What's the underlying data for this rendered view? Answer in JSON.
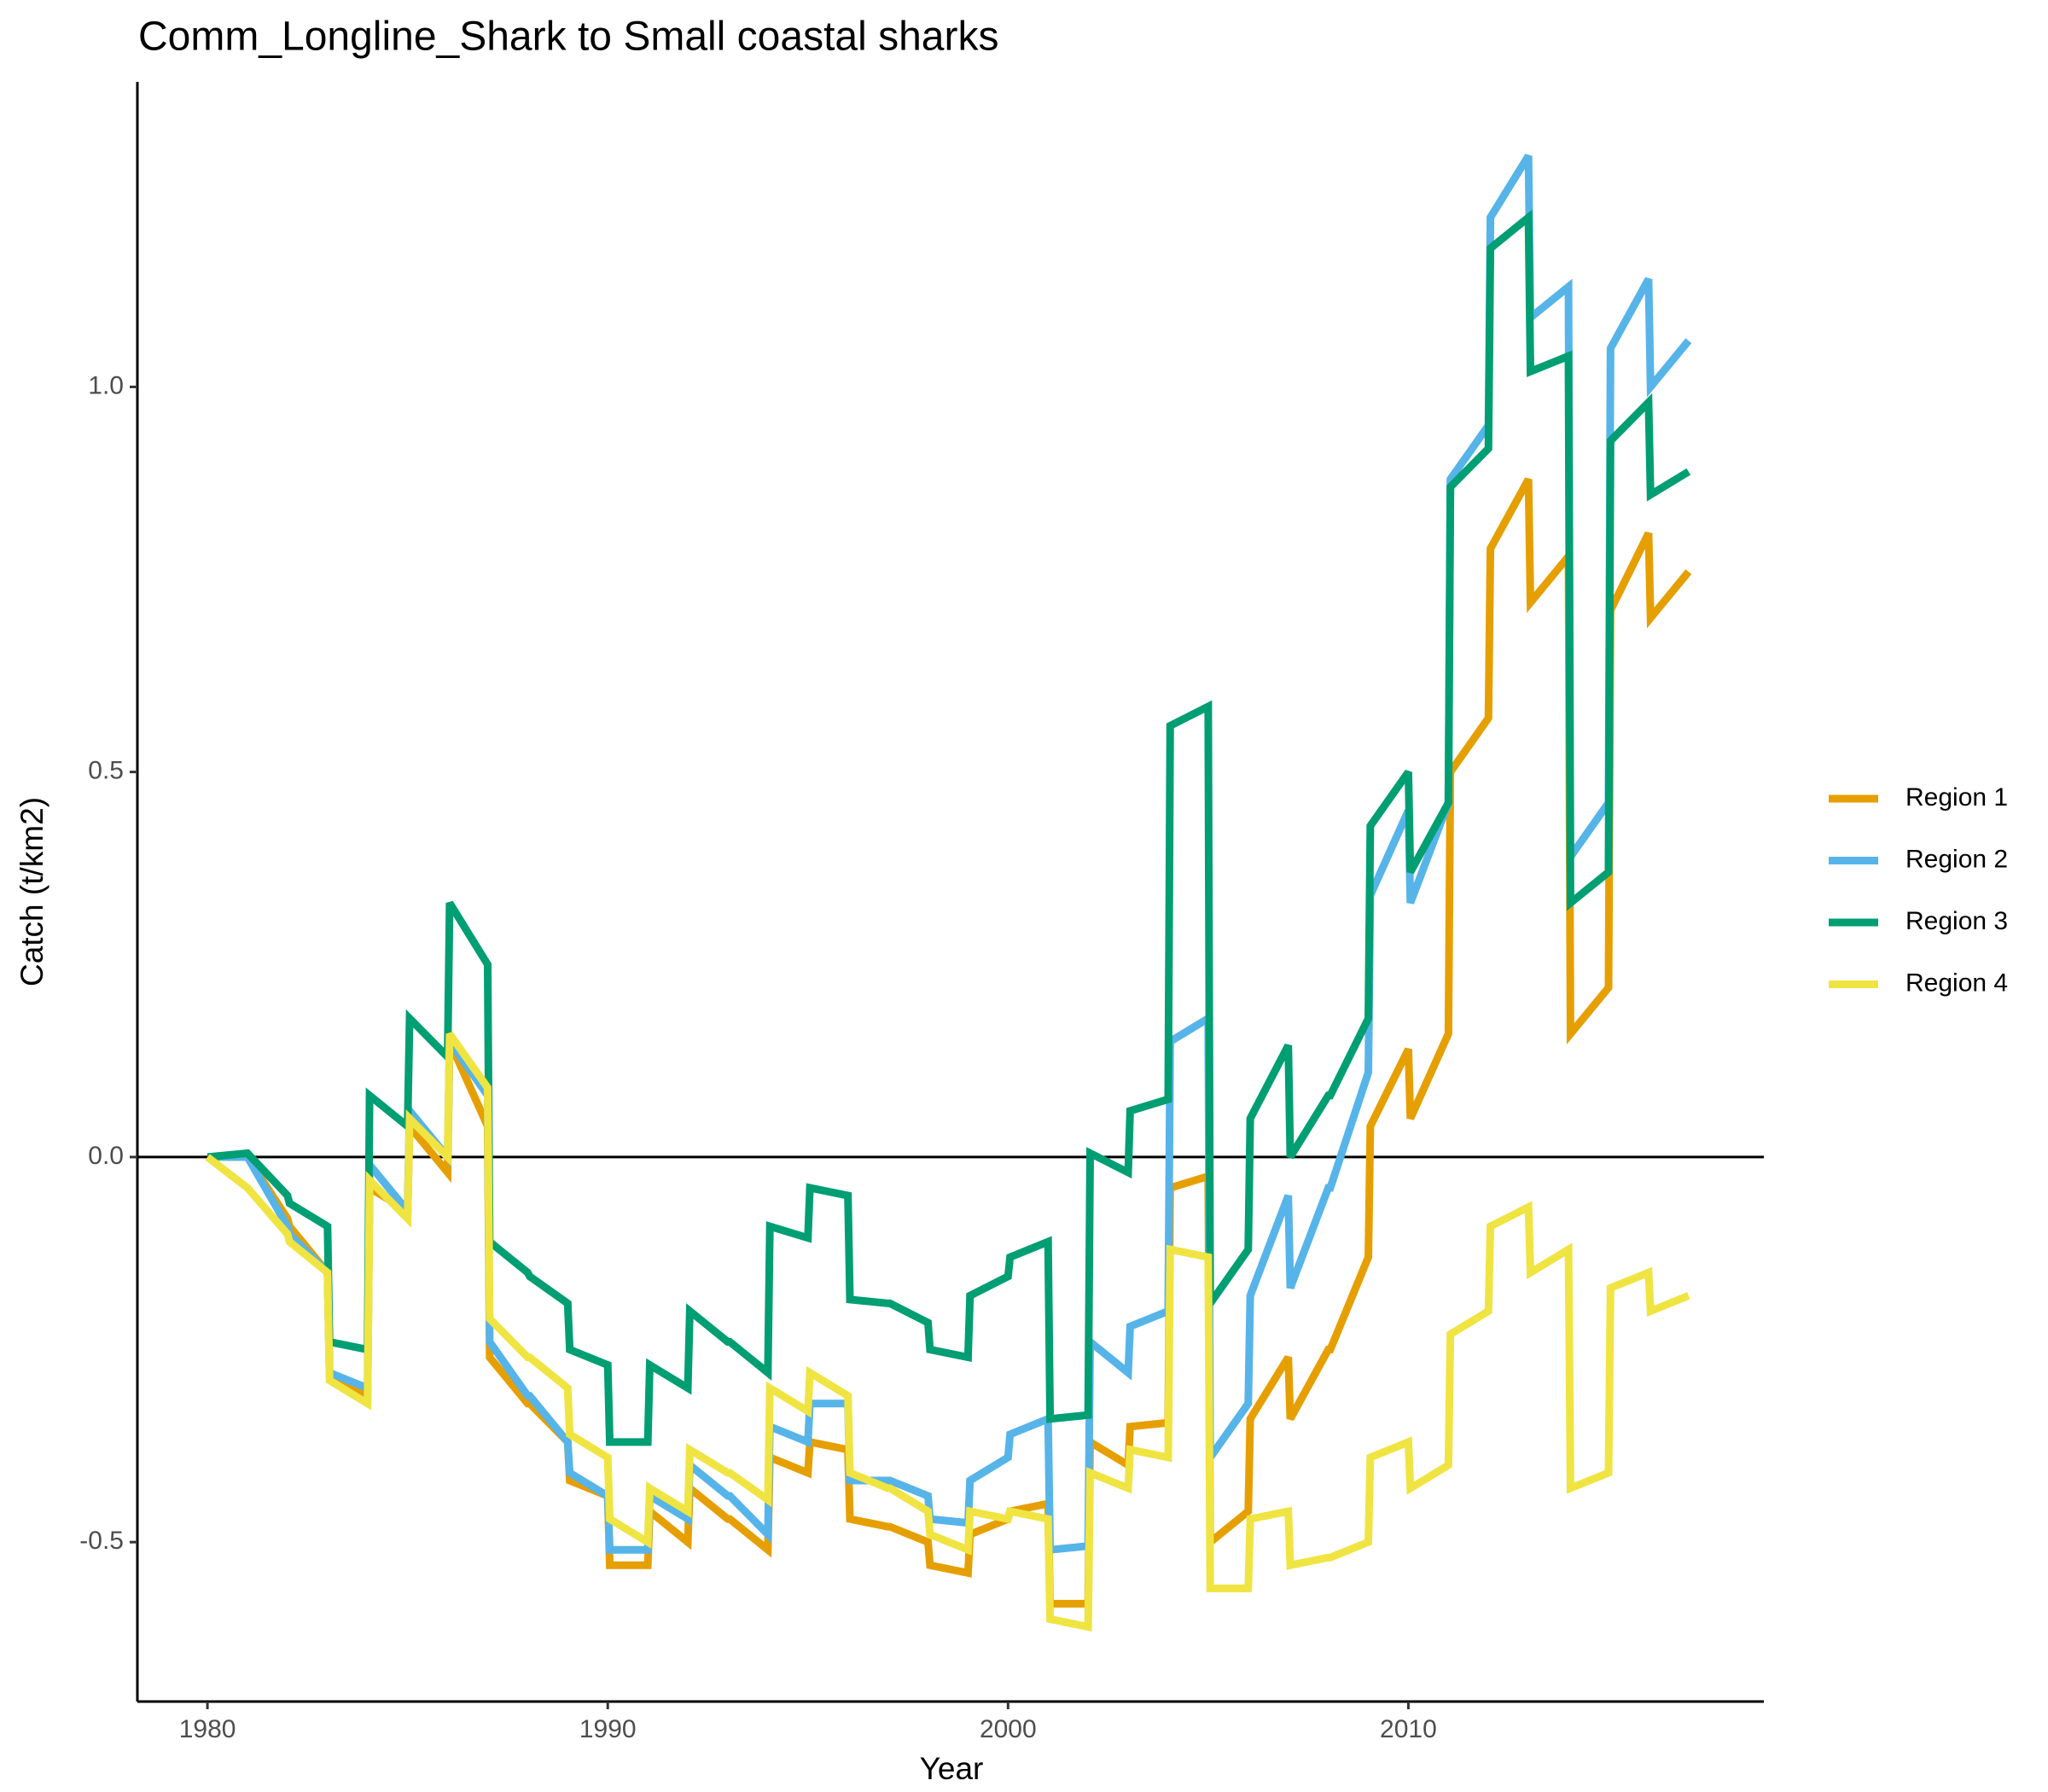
{
  "chart_data": {
    "type": "line",
    "title": "Comm_Longline_Shark to Small coastal sharks",
    "x_label": "Year",
    "y_label": "Catch (t/km2)",
    "x": [
      1980,
      1981,
      1982,
      1982.05,
      1983,
      1983.05,
      1984,
      1984.05,
      1985,
      1985.05,
      1986,
      1986.05,
      1987,
      1987.05,
      1988,
      1988.05,
      1989,
      1989.05,
      1990,
      1990.05,
      1991,
      1991.05,
      1992,
      1992.05,
      1993,
      1993.05,
      1994,
      1994.05,
      1995,
      1995.05,
      1996,
      1996.05,
      1997,
      1997.05,
      1998,
      1998.05,
      1999,
      1999.05,
      2000,
      2000.05,
      2001,
      2001.05,
      2002,
      2002.05,
      2003,
      2003.05,
      2004,
      2004.05,
      2005,
      2005.05,
      2006,
      2006.05,
      2007,
      2007.05,
      2008,
      2008.05,
      2009,
      2009.05,
      2010,
      2010.05,
      2011,
      2011.05,
      2012,
      2012.05,
      2013,
      2013.05,
      2014,
      2014.05,
      2015,
      2015.05,
      2016,
      2016.05,
      2017
    ],
    "series": [
      {
        "name": "Region 1",
        "color": "#E69F00",
        "values": [
          0,
          0,
          -0.08,
          -0.09,
          -0.15,
          -0.28,
          -0.31,
          -0.04,
          -0.07,
          0.04,
          -0.02,
          0.15,
          0.04,
          -0.26,
          -0.32,
          -0.32,
          -0.37,
          -0.42,
          -0.44,
          -0.53,
          -0.53,
          -0.46,
          -0.5,
          -0.43,
          -0.47,
          -0.47,
          -0.51,
          -0.39,
          -0.41,
          -0.37,
          -0.38,
          -0.47,
          -0.48,
          -0.48,
          -0.5,
          -0.53,
          -0.54,
          -0.49,
          -0.47,
          -0.46,
          -0.45,
          -0.58,
          -0.58,
          -0.37,
          -0.4,
          -0.35,
          -0.345,
          -0.04,
          -0.025,
          -0.5,
          -0.46,
          -0.34,
          -0.26,
          -0.34,
          -0.25,
          -0.25,
          -0.13,
          0.04,
          0.14,
          0.05,
          0.16,
          0.5,
          0.57,
          0.79,
          0.88,
          0.72,
          0.78,
          0.16,
          0.22,
          0.71,
          0.81,
          0.7,
          0.76
        ]
      },
      {
        "name": "Region 2",
        "color": "#56B4E9",
        "values": [
          0,
          0,
          -0.09,
          -0.1,
          -0.15,
          -0.28,
          -0.3,
          -0.01,
          -0.07,
          0.06,
          0,
          0.15,
          0.08,
          -0.24,
          -0.31,
          -0.31,
          -0.37,
          -0.41,
          -0.44,
          -0.51,
          -0.51,
          -0.44,
          -0.47,
          -0.4,
          -0.44,
          -0.44,
          -0.49,
          -0.35,
          -0.37,
          -0.32,
          -0.32,
          -0.42,
          -0.42,
          -0.42,
          -0.44,
          -0.47,
          -0.475,
          -0.42,
          -0.39,
          -0.36,
          -0.34,
          -0.51,
          -0.505,
          -0.24,
          -0.28,
          -0.22,
          -0.2,
          0.15,
          0.18,
          -0.39,
          -0.32,
          -0.18,
          -0.05,
          -0.17,
          -0.04,
          -0.04,
          0.11,
          0.34,
          0.45,
          0.33,
          0.46,
          0.88,
          0.95,
          1.22,
          1.3,
          1.09,
          1.13,
          0.39,
          0.46,
          1.05,
          1.14,
          1,
          1.06
        ]
      },
      {
        "name": "Region 3",
        "color": "#009E73",
        "values": [
          0,
          0.005,
          -0.05,
          -0.06,
          -0.09,
          -0.24,
          -0.25,
          0.08,
          0.04,
          0.18,
          0.13,
          0.33,
          0.25,
          -0.11,
          -0.15,
          -0.155,
          -0.19,
          -0.25,
          -0.27,
          -0.37,
          -0.37,
          -0.27,
          -0.3,
          -0.2,
          -0.24,
          -0.24,
          -0.28,
          -0.09,
          -0.105,
          -0.04,
          -0.05,
          -0.185,
          -0.19,
          -0.19,
          -0.215,
          -0.25,
          -0.26,
          -0.18,
          -0.155,
          -0.13,
          -0.11,
          -0.34,
          -0.335,
          0.005,
          -0.02,
          0.06,
          0.075,
          0.56,
          0.585,
          -0.19,
          -0.12,
          0.05,
          0.145,
          0,
          0.08,
          0.08,
          0.18,
          0.43,
          0.5,
          0.37,
          0.46,
          0.87,
          0.92,
          1.18,
          1.22,
          1.02,
          1.04,
          0.33,
          0.37,
          0.93,
          0.98,
          0.86,
          0.89
        ]
      },
      {
        "name": "Region 4",
        "color": "#F0E442",
        "values": [
          0,
          -0.04,
          -0.1,
          -0.11,
          -0.15,
          -0.29,
          -0.32,
          -0.03,
          -0.08,
          0.05,
          0,
          0.16,
          0.09,
          -0.21,
          -0.26,
          -0.26,
          -0.3,
          -0.36,
          -0.39,
          -0.47,
          -0.5,
          -0.43,
          -0.46,
          -0.38,
          -0.41,
          -0.41,
          -0.445,
          -0.3,
          -0.33,
          -0.28,
          -0.31,
          -0.41,
          -0.43,
          -0.43,
          -0.46,
          -0.49,
          -0.51,
          -0.46,
          -0.47,
          -0.46,
          -0.47,
          -0.6,
          -0.61,
          -0.41,
          -0.43,
          -0.38,
          -0.39,
          -0.12,
          -0.13,
          -0.56,
          -0.56,
          -0.47,
          -0.46,
          -0.53,
          -0.52,
          -0.52,
          -0.5,
          -0.39,
          -0.37,
          -0.43,
          -0.4,
          -0.23,
          -0.2,
          -0.09,
          -0.065,
          -0.15,
          -0.12,
          -0.43,
          -0.41,
          -0.17,
          -0.15,
          -0.2,
          -0.18
        ]
      }
    ],
    "xlim": [
      1978.25,
      2018.88
    ],
    "ylim": [
      -0.707,
      1.396
    ],
    "xticks": [
      1980,
      1990,
      2000,
      2010
    ],
    "yticks": [
      -0.5,
      {
        "value": 0,
        "label": "0.0"
      },
      0.5,
      {
        "value": 1,
        "label": "1.0"
      }
    ],
    "hline": 0,
    "legend": "right"
  }
}
